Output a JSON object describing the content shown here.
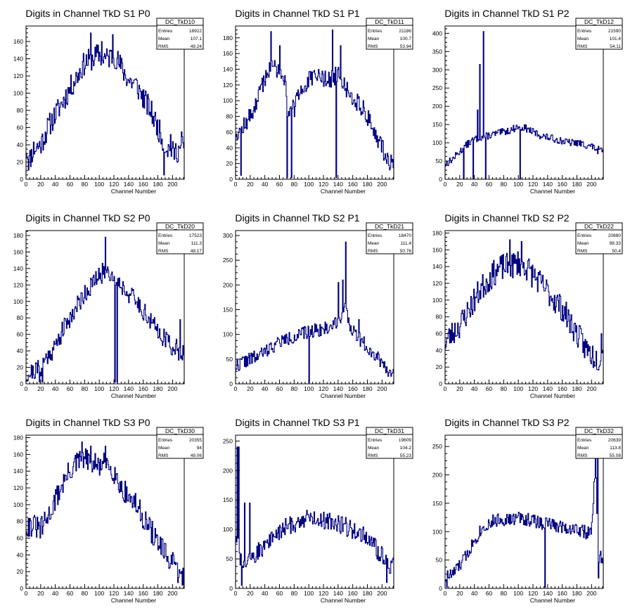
{
  "colors": {
    "line": "#000080",
    "axis": "#000000",
    "background": "#ffffff"
  },
  "stat_labels": [
    "Entries",
    "Mean",
    "RMS"
  ],
  "chart_data": [
    {
      "type": "line",
      "title": "Digits in Channel TkD S1 P0",
      "xlabel": "Channel Number",
      "ylabel": "",
      "xlim": [
        0,
        216
      ],
      "ylim": [
        0,
        178
      ],
      "xticks": [
        0,
        20,
        40,
        60,
        80,
        100,
        120,
        140,
        160,
        180,
        200
      ],
      "yticks": [
        20,
        40,
        60,
        80,
        100,
        120,
        140,
        160
      ],
      "stats": {
        "name": "DC_TkD10",
        "Entries": "18922",
        "Mean": "107.1",
        "RMS": "49.24"
      },
      "profile": [
        [
          0,
          40
        ],
        [
          4,
          20
        ],
        [
          10,
          35
        ],
        [
          20,
          40
        ],
        [
          30,
          60
        ],
        [
          40,
          75
        ],
        [
          50,
          90
        ],
        [
          60,
          105
        ],
        [
          70,
          120
        ],
        [
          80,
          135
        ],
        [
          90,
          140
        ],
        [
          100,
          145
        ],
        [
          110,
          140
        ],
        [
          120,
          145
        ],
        [
          130,
          130
        ],
        [
          140,
          115
        ],
        [
          150,
          110
        ],
        [
          160,
          95
        ],
        [
          170,
          80
        ],
        [
          180,
          60
        ],
        [
          190,
          40
        ],
        [
          200,
          30
        ],
        [
          210,
          35
        ],
        [
          216,
          40
        ]
      ],
      "spikes": [
        [
          88,
          170
        ],
        [
          103,
          160
        ],
        [
          118,
          168
        ],
        [
          188,
          5
        ],
        [
          197,
          52
        ],
        [
          212,
          55
        ]
      ],
      "noise": 14,
      "seed": 11
    },
    {
      "type": "line",
      "title": "Digits in Channel TkD S1 P1",
      "xlabel": "Channel Number",
      "ylabel": "",
      "xlim": [
        0,
        216
      ],
      "ylim": [
        0,
        195
      ],
      "xticks": [
        0,
        20,
        40,
        60,
        80,
        100,
        120,
        140,
        160,
        180,
        200
      ],
      "yticks": [
        20,
        40,
        60,
        80,
        100,
        120,
        140,
        160,
        180
      ],
      "stats": {
        "name": "DC_TkD11",
        "Entries": "21186",
        "Mean": "100.7",
        "RMS": "53.94"
      },
      "profile": [
        [
          0,
          60
        ],
        [
          10,
          65
        ],
        [
          20,
          80
        ],
        [
          30,
          100
        ],
        [
          40,
          130
        ],
        [
          50,
          145
        ],
        [
          60,
          140
        ],
        [
          68,
          130
        ],
        [
          72,
          85
        ],
        [
          80,
          90
        ],
        [
          90,
          115
        ],
        [
          100,
          125
        ],
        [
          110,
          130
        ],
        [
          120,
          130
        ],
        [
          130,
          125
        ],
        [
          140,
          135
        ],
        [
          150,
          115
        ],
        [
          160,
          105
        ],
        [
          170,
          95
        ],
        [
          180,
          80
        ],
        [
          190,
          60
        ],
        [
          200,
          40
        ],
        [
          210,
          22
        ],
        [
          216,
          25
        ]
      ],
      "spikes": [
        [
          7,
          5
        ],
        [
          48,
          188
        ],
        [
          60,
          170
        ],
        [
          70,
          2
        ],
        [
          76,
          2
        ],
        [
          132,
          190
        ],
        [
          137,
          2
        ],
        [
          143,
          170
        ]
      ],
      "noise": 12,
      "seed": 12
    },
    {
      "type": "line",
      "title": "Digits in Channel TkD S1 P2",
      "xlabel": "Channel Number",
      "ylabel": "",
      "xlim": [
        0,
        216
      ],
      "ylim": [
        0,
        420
      ],
      "xticks": [
        0,
        20,
        40,
        60,
        80,
        100,
        120,
        140,
        160,
        180,
        200
      ],
      "yticks": [
        50,
        100,
        150,
        200,
        250,
        300,
        350,
        400
      ],
      "stats": {
        "name": "DC_TkD12",
        "Entries": "21590",
        "Mean": "101.4",
        "RMS": "54.11"
      },
      "profile": [
        [
          0,
          40
        ],
        [
          10,
          55
        ],
        [
          20,
          75
        ],
        [
          30,
          95
        ],
        [
          40,
          110
        ],
        [
          50,
          115
        ],
        [
          60,
          120
        ],
        [
          70,
          125
        ],
        [
          80,
          130
        ],
        [
          90,
          135
        ],
        [
          100,
          145
        ],
        [
          110,
          140
        ],
        [
          120,
          130
        ],
        [
          130,
          120
        ],
        [
          140,
          115
        ],
        [
          150,
          110
        ],
        [
          160,
          105
        ],
        [
          170,
          100
        ],
        [
          180,
          100
        ],
        [
          190,
          95
        ],
        [
          200,
          90
        ],
        [
          210,
          80
        ],
        [
          216,
          75
        ]
      ],
      "spikes": [
        [
          25,
          2
        ],
        [
          38,
          2
        ],
        [
          44,
          190
        ],
        [
          47,
          315
        ],
        [
          52,
          405
        ],
        [
          55,
          2
        ],
        [
          102,
          2
        ],
        [
          208,
          70
        ]
      ],
      "noise": 10,
      "seed": 13
    },
    {
      "type": "line",
      "title": "Digits in Channel TkD S2 P0",
      "xlabel": "Channel Number",
      "ylabel": "",
      "xlim": [
        0,
        216
      ],
      "ylim": [
        0,
        186
      ],
      "xticks": [
        0,
        20,
        40,
        60,
        80,
        100,
        120,
        140,
        160,
        180,
        200
      ],
      "yticks": [
        20,
        40,
        60,
        80,
        100,
        120,
        140,
        160,
        180
      ],
      "stats": {
        "name": "DC_TkD20",
        "Entries": "17523",
        "Mean": "111.3",
        "RMS": "48.17"
      },
      "profile": [
        [
          0,
          10
        ],
        [
          10,
          15
        ],
        [
          20,
          20
        ],
        [
          30,
          35
        ],
        [
          40,
          45
        ],
        [
          50,
          65
        ],
        [
          60,
          80
        ],
        [
          70,
          95
        ],
        [
          80,
          110
        ],
        [
          90,
          120
        ],
        [
          100,
          130
        ],
        [
          110,
          140
        ],
        [
          120,
          130
        ],
        [
          130,
          120
        ],
        [
          140,
          110
        ],
        [
          150,
          100
        ],
        [
          160,
          90
        ],
        [
          170,
          75
        ],
        [
          180,
          65
        ],
        [
          190,
          55
        ],
        [
          200,
          45
        ],
        [
          210,
          40
        ],
        [
          216,
          40
        ]
      ],
      "spikes": [
        [
          18,
          2
        ],
        [
          22,
          2
        ],
        [
          108,
          178
        ],
        [
          121,
          2
        ],
        [
          124,
          2
        ],
        [
          210,
          78
        ]
      ],
      "noise": 12,
      "seed": 21
    },
    {
      "type": "line",
      "title": "Digits in Channel TkD S2 P1",
      "xlabel": "Channel Number",
      "ylabel": "",
      "xlim": [
        0,
        216
      ],
      "ylim": [
        0,
        310
      ],
      "xticks": [
        0,
        20,
        40,
        60,
        80,
        100,
        120,
        140,
        160,
        180,
        200
      ],
      "yticks": [
        50,
        100,
        150,
        200,
        250,
        300
      ],
      "stats": {
        "name": "DC_TkD21",
        "Entries": "18470",
        "Mean": "111.4",
        "RMS": "50.76"
      },
      "profile": [
        [
          0,
          35
        ],
        [
          10,
          45
        ],
        [
          20,
          50
        ],
        [
          30,
          55
        ],
        [
          40,
          65
        ],
        [
          50,
          75
        ],
        [
          60,
          85
        ],
        [
          70,
          90
        ],
        [
          80,
          95
        ],
        [
          90,
          100
        ],
        [
          100,
          105
        ],
        [
          110,
          110
        ],
        [
          120,
          110
        ],
        [
          130,
          115
        ],
        [
          140,
          130
        ],
        [
          150,
          150
        ],
        [
          155,
          120
        ],
        [
          160,
          110
        ],
        [
          170,
          90
        ],
        [
          180,
          75
        ],
        [
          190,
          60
        ],
        [
          200,
          45
        ],
        [
          210,
          25
        ],
        [
          216,
          15
        ]
      ],
      "spikes": [
        [
          100,
          2
        ],
        [
          140,
          205
        ],
        [
          146,
          210
        ],
        [
          150,
          287
        ],
        [
          168,
          130
        ]
      ],
      "noise": 14,
      "seed": 22
    },
    {
      "type": "line",
      "title": "Digits in Channel TkD S2 P2",
      "xlabel": "Channel Number",
      "ylabel": "",
      "xlim": [
        0,
        216
      ],
      "ylim": [
        0,
        183
      ],
      "xticks": [
        0,
        20,
        40,
        60,
        80,
        100,
        120,
        140,
        160,
        180,
        200
      ],
      "yticks": [
        20,
        40,
        60,
        80,
        100,
        120,
        140,
        160,
        180
      ],
      "stats": {
        "name": "DC_TkD22",
        "Entries": "20880",
        "Mean": "98.33",
        "RMS": "50.4"
      },
      "profile": [
        [
          0,
          50
        ],
        [
          10,
          60
        ],
        [
          20,
          70
        ],
        [
          30,
          85
        ],
        [
          40,
          100
        ],
        [
          50,
          115
        ],
        [
          60,
          125
        ],
        [
          70,
          135
        ],
        [
          80,
          140
        ],
        [
          90,
          140
        ],
        [
          100,
          145
        ],
        [
          110,
          140
        ],
        [
          120,
          130
        ],
        [
          130,
          120
        ],
        [
          140,
          110
        ],
        [
          150,
          100
        ],
        [
          160,
          90
        ],
        [
          170,
          75
        ],
        [
          180,
          60
        ],
        [
          190,
          45
        ],
        [
          200,
          35
        ],
        [
          210,
          30
        ],
        [
          216,
          35
        ]
      ],
      "spikes": [
        [
          88,
          172
        ],
        [
          104,
          170
        ],
        [
          213,
          60
        ]
      ],
      "noise": 16,
      "seed": 23
    },
    {
      "type": "line",
      "title": "Digits in Channel TkD S3 P0",
      "xlabel": "Channel Number",
      "ylabel": "",
      "xlim": [
        0,
        216
      ],
      "ylim": [
        0,
        183
      ],
      "xticks": [
        0,
        20,
        40,
        60,
        80,
        100,
        120,
        140,
        160,
        180,
        200
      ],
      "yticks": [
        20,
        40,
        60,
        80,
        100,
        120,
        140,
        160,
        180
      ],
      "stats": {
        "name": "DC_TkD30",
        "Entries": "20355",
        "Mean": "94",
        "RMS": "49.06"
      },
      "profile": [
        [
          0,
          75
        ],
        [
          10,
          75
        ],
        [
          20,
          70
        ],
        [
          30,
          85
        ],
        [
          40,
          105
        ],
        [
          50,
          125
        ],
        [
          60,
          140
        ],
        [
          70,
          150
        ],
        [
          80,
          155
        ],
        [
          90,
          150
        ],
        [
          100,
          145
        ],
        [
          110,
          150
        ],
        [
          120,
          140
        ],
        [
          130,
          120
        ],
        [
          140,
          110
        ],
        [
          150,
          100
        ],
        [
          160,
          85
        ],
        [
          170,
          70
        ],
        [
          180,
          55
        ],
        [
          190,
          40
        ],
        [
          200,
          30
        ],
        [
          210,
          15
        ],
        [
          216,
          12
        ]
      ],
      "spikes": [
        [
          76,
          175
        ],
        [
          88,
          170
        ],
        [
          108,
          170
        ]
      ],
      "noise": 14,
      "seed": 31
    },
    {
      "type": "line",
      "title": "Digits in Channel TkD S3 P1",
      "xlabel": "Channel Number",
      "ylabel": "",
      "xlim": [
        0,
        216
      ],
      "ylim": [
        0,
        260
      ],
      "xticks": [
        0,
        20,
        40,
        60,
        80,
        100,
        120,
        140,
        160,
        180,
        200
      ],
      "yticks": [
        50,
        100,
        150,
        200,
        250
      ],
      "stats": {
        "name": "DC_TkD31",
        "Entries": "19609",
        "Mean": "104.2",
        "RMS": "55.23"
      },
      "profile": [
        [
          0,
          100
        ],
        [
          8,
          40
        ],
        [
          20,
          45
        ],
        [
          30,
          60
        ],
        [
          40,
          75
        ],
        [
          50,
          85
        ],
        [
          60,
          95
        ],
        [
          70,
          105
        ],
        [
          80,
          110
        ],
        [
          90,
          115
        ],
        [
          100,
          120
        ],
        [
          110,
          120
        ],
        [
          120,
          115
        ],
        [
          130,
          115
        ],
        [
          140,
          110
        ],
        [
          150,
          105
        ],
        [
          160,
          100
        ],
        [
          170,
          95
        ],
        [
          180,
          85
        ],
        [
          190,
          70
        ],
        [
          200,
          55
        ],
        [
          210,
          35
        ],
        [
          216,
          40
        ]
      ],
      "spikes": [
        [
          2,
          240
        ],
        [
          4,
          240
        ],
        [
          8,
          5
        ],
        [
          12,
          145
        ],
        [
          19,
          145
        ],
        [
          206,
          10
        ]
      ],
      "noise": 16,
      "seed": 32
    },
    {
      "type": "line",
      "title": "Digits in Channel TkD S3 P2",
      "xlabel": "Channel Number",
      "ylabel": "",
      "xlim": [
        0,
        216
      ],
      "ylim": [
        0,
        270
      ],
      "xticks": [
        0,
        20,
        40,
        60,
        80,
        100,
        120,
        140,
        160,
        180,
        200
      ],
      "yticks": [
        50,
        100,
        150,
        200,
        250
      ],
      "stats": {
        "name": "DC_TkD32",
        "Entries": "20639",
        "Mean": "113.8",
        "RMS": "55.08"
      },
      "profile": [
        [
          0,
          20
        ],
        [
          10,
          25
        ],
        [
          20,
          40
        ],
        [
          30,
          60
        ],
        [
          40,
          85
        ],
        [
          50,
          105
        ],
        [
          60,
          115
        ],
        [
          70,
          120
        ],
        [
          80,
          122
        ],
        [
          90,
          120
        ],
        [
          100,
          125
        ],
        [
          110,
          122
        ],
        [
          120,
          120
        ],
        [
          130,
          115
        ],
        [
          140,
          115
        ],
        [
          150,
          110
        ],
        [
          160,
          110
        ],
        [
          170,
          105
        ],
        [
          180,
          105
        ],
        [
          190,
          100
        ],
        [
          200,
          95
        ],
        [
          206,
          240
        ],
        [
          209,
          20
        ],
        [
          212,
          60
        ],
        [
          216,
          40
        ]
      ],
      "spikes": [
        [
          2,
          2
        ],
        [
          136,
          2
        ],
        [
          208,
          270
        ]
      ],
      "noise": 12,
      "seed": 33
    }
  ]
}
